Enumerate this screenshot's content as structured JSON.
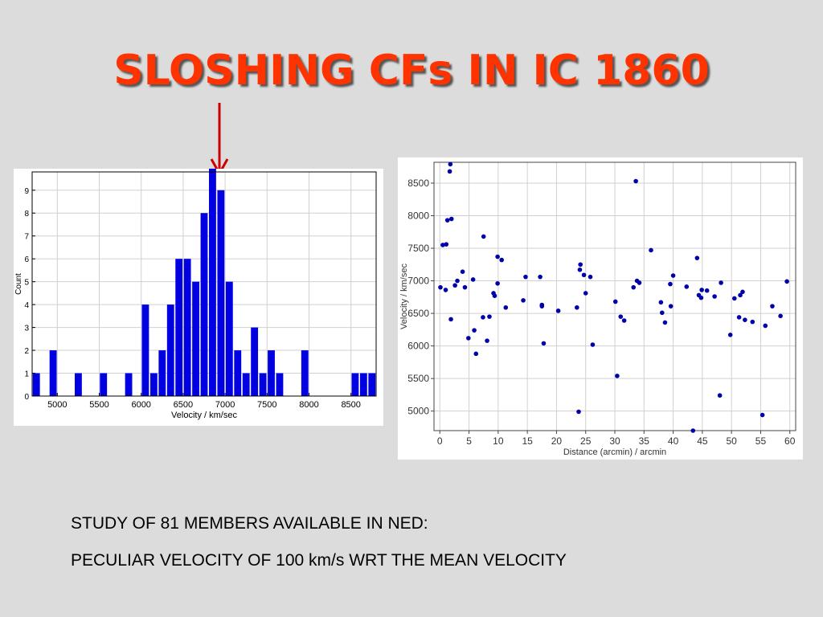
{
  "slide": {
    "title": "SLOSHING CFs IN IC 1860",
    "captions": [
      "STUDY OF 81 MEMBERS AVAILABLE IN NED:",
      "PECULIAR VELOCITY OF 100 km/s WRT THE MEAN VELOCITY"
    ],
    "title_color": "#ff3300",
    "arrow_color": "#cc0000"
  },
  "chart_data": [
    {
      "type": "bar",
      "title": "",
      "xlabel": "Velocity / km/sec",
      "ylabel": "Count",
      "xlim": [
        4700,
        8800
      ],
      "ylim": [
        0,
        9.8
      ],
      "xticks": [
        5000,
        5500,
        6000,
        6500,
        7000,
        7500,
        8000,
        8500
      ],
      "yticks": [
        0,
        1,
        2,
        3,
        4,
        5,
        6,
        7,
        8,
        9
      ],
      "bin_width": 100,
      "bin_centers": [
        4750,
        4950,
        5250,
        5550,
        5850,
        6050,
        6150,
        6250,
        6350,
        6450,
        6550,
        6650,
        6750,
        6850,
        6950,
        7050,
        7150,
        7250,
        7350,
        7450,
        7550,
        7650,
        7950,
        8550,
        8650,
        8750
      ],
      "values": [
        1,
        2,
        1,
        1,
        1,
        4,
        1,
        2,
        4,
        6,
        6,
        5,
        8,
        10,
        9,
        5,
        2,
        1,
        3,
        1,
        2,
        1,
        2,
        1,
        1,
        1
      ],
      "bar_color": "#0000e0",
      "grid": true
    },
    {
      "type": "scatter",
      "title": "",
      "xlabel": "Distance (arcmin) / arcmin",
      "ylabel": "Velocity / km/sec",
      "xlim": [
        -1,
        61
      ],
      "ylim": [
        4700,
        8820
      ],
      "xticks": [
        0,
        5,
        10,
        15,
        20,
        25,
        30,
        35,
        40,
        45,
        50,
        55,
        60
      ],
      "yticks": [
        5000,
        5500,
        6000,
        6500,
        7000,
        7500,
        8000,
        8500
      ],
      "point_color": "#0000aa",
      "grid": true,
      "points": [
        [
          0.1,
          6900
        ],
        [
          0.5,
          7550
        ],
        [
          1.0,
          6860
        ],
        [
          1.1,
          7560
        ],
        [
          1.3,
          7930
        ],
        [
          1.7,
          8680
        ],
        [
          1.8,
          8790
        ],
        [
          2.0,
          7950
        ],
        [
          1.9,
          6410
        ],
        [
          2.6,
          6930
        ],
        [
          3.0,
          7000
        ],
        [
          3.9,
          7140
        ],
        [
          4.3,
          6900
        ],
        [
          4.9,
          6120
        ],
        [
          5.7,
          7020
        ],
        [
          5.9,
          6240
        ],
        [
          6.2,
          5880
        ],
        [
          7.4,
          6440
        ],
        [
          7.5,
          7680
        ],
        [
          8.1,
          6080
        ],
        [
          8.5,
          6450
        ],
        [
          9.2,
          6810
        ],
        [
          9.4,
          6770
        ],
        [
          9.9,
          7370
        ],
        [
          9.9,
          6960
        ],
        [
          10.6,
          7320
        ],
        [
          11.3,
          6590
        ],
        [
          14.3,
          6700
        ],
        [
          14.7,
          7060
        ],
        [
          17.2,
          7060
        ],
        [
          17.5,
          6630
        ],
        [
          17.5,
          6610
        ],
        [
          17.8,
          6040
        ],
        [
          20.3,
          6540
        ],
        [
          23.5,
          6590
        ],
        [
          23.8,
          4990
        ],
        [
          24.0,
          7170
        ],
        [
          24.1,
          7250
        ],
        [
          24.7,
          7090
        ],
        [
          25.0,
          6810
        ],
        [
          25.8,
          7060
        ],
        [
          26.2,
          6020
        ],
        [
          30.1,
          6680
        ],
        [
          30.4,
          5540
        ],
        [
          31.0,
          6450
        ],
        [
          31.6,
          6390
        ],
        [
          33.2,
          6900
        ],
        [
          33.6,
          8530
        ],
        [
          33.8,
          7000
        ],
        [
          34.2,
          6970
        ],
        [
          36.2,
          7470
        ],
        [
          37.9,
          6670
        ],
        [
          38.1,
          6510
        ],
        [
          38.6,
          6360
        ],
        [
          39.5,
          6950
        ],
        [
          39.6,
          6610
        ],
        [
          40.0,
          7080
        ],
        [
          42.3,
          6910
        ],
        [
          43.4,
          4700
        ],
        [
          44.1,
          7350
        ],
        [
          44.4,
          6780
        ],
        [
          44.8,
          6740
        ],
        [
          44.9,
          6860
        ],
        [
          45.8,
          6850
        ],
        [
          47.1,
          6760
        ],
        [
          48.0,
          5240
        ],
        [
          48.2,
          6970
        ],
        [
          49.8,
          6170
        ],
        [
          50.5,
          6730
        ],
        [
          51.3,
          6440
        ],
        [
          51.5,
          6780
        ],
        [
          51.9,
          6830
        ],
        [
          52.3,
          6400
        ],
        [
          53.6,
          6370
        ],
        [
          55.3,
          4940
        ],
        [
          55.8,
          6310
        ],
        [
          57.0,
          6610
        ],
        [
          58.4,
          6460
        ],
        [
          59.5,
          6990
        ]
      ]
    }
  ]
}
